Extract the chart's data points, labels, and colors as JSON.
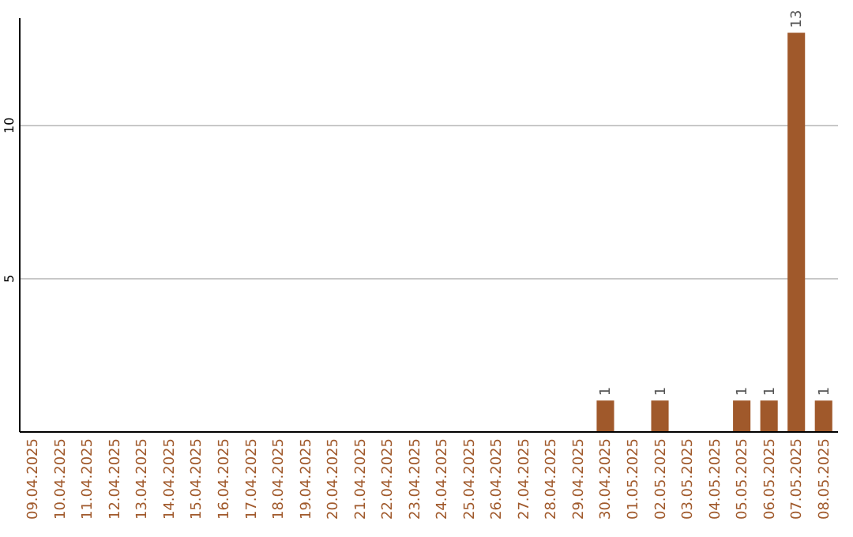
{
  "chart_data": {
    "type": "bar",
    "categories": [
      "09.04.2025",
      "10.04.2025",
      "11.04.2025",
      "12.04.2025",
      "13.04.2025",
      "14.04.2025",
      "15.04.2025",
      "16.04.2025",
      "17.04.2025",
      "18.04.2025",
      "19.04.2025",
      "20.04.2025",
      "21.04.2025",
      "22.04.2025",
      "23.04.2025",
      "24.04.2025",
      "25.04.2025",
      "26.04.2025",
      "27.04.2025",
      "28.04.2025",
      "29.04.2025",
      "30.04.2025",
      "01.05.2025",
      "02.05.2025",
      "03.05.2025",
      "04.05.2025",
      "05.05.2025",
      "06.05.2025",
      "07.05.2025",
      "08.05.2025"
    ],
    "values": [
      0,
      0,
      0,
      0,
      0,
      0,
      0,
      0,
      0,
      0,
      0,
      0,
      0,
      0,
      0,
      0,
      0,
      0,
      0,
      0,
      0,
      1,
      0,
      1,
      0,
      0,
      1,
      1,
      13,
      1
    ],
    "value_labels": [
      null,
      null,
      null,
      null,
      null,
      null,
      null,
      null,
      null,
      null,
      null,
      null,
      null,
      null,
      null,
      null,
      null,
      null,
      null,
      null,
      null,
      "1",
      null,
      "1",
      null,
      null,
      "1",
      "1",
      "13",
      "1"
    ],
    "color": "#a0592b",
    "ylim": [
      0,
      13.5
    ],
    "yticks": [
      5,
      10
    ],
    "grid": "y"
  }
}
